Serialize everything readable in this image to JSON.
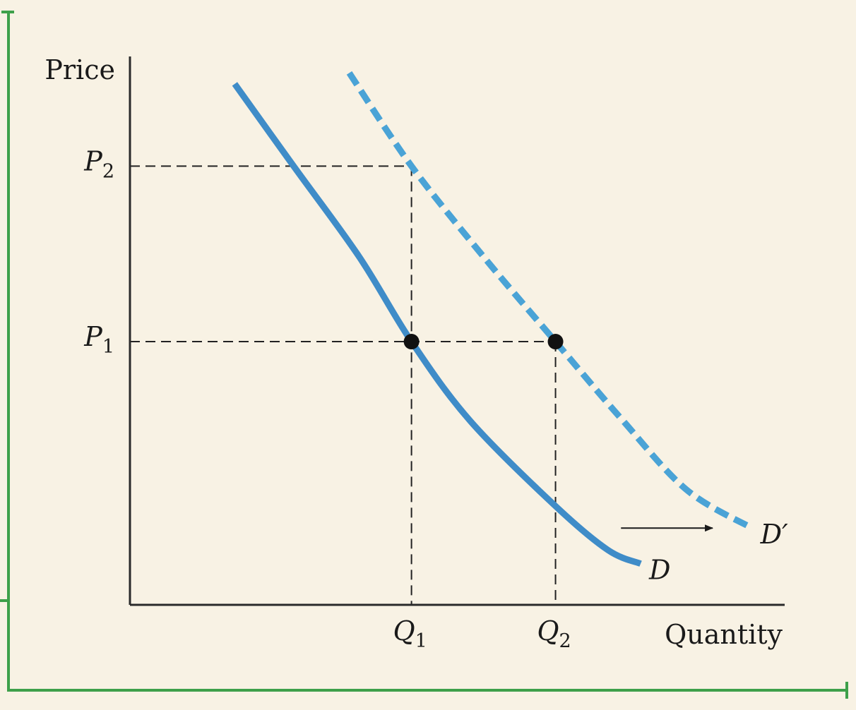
{
  "chart_data": {
    "type": "line",
    "title": "",
    "xlabel": "Quantity",
    "ylabel": "Price",
    "xlim": [
      0,
      100
    ],
    "ylim": [
      0,
      100
    ],
    "grid": false,
    "legend": "none",
    "x_ticks": [
      {
        "label": "Q",
        "sub": "1",
        "value": 43
      },
      {
        "label": "Q",
        "sub": "2",
        "value": 65
      }
    ],
    "y_ticks": [
      {
        "label": "P",
        "sub": "1",
        "value": 48
      },
      {
        "label": "P",
        "sub": "2",
        "value": 80
      }
    ],
    "series": [
      {
        "name": "D",
        "style": "solid",
        "color": "#3f8cc8",
        "points": [
          [
            16,
            95
          ],
          [
            25,
            80
          ],
          [
            35,
            63.5
          ],
          [
            43,
            48
          ],
          [
            52,
            33.5
          ],
          [
            65,
            18
          ],
          [
            73,
            10
          ],
          [
            78,
            7.5
          ]
        ]
      },
      {
        "name": "D′",
        "style": "dashed",
        "color": "#4aa3d6",
        "points": [
          [
            33.5,
            97
          ],
          [
            43,
            80
          ],
          [
            54,
            63.5
          ],
          [
            65,
            48
          ],
          [
            75,
            34
          ],
          [
            85,
            21
          ],
          [
            95,
            14
          ]
        ]
      }
    ],
    "points": [
      {
        "x": 43,
        "y": 48
      },
      {
        "x": 65,
        "y": 48
      }
    ],
    "guides": [
      {
        "from": [
          0,
          80
        ],
        "to": [
          43,
          80
        ]
      },
      {
        "from": [
          43,
          80
        ],
        "to": [
          43,
          0
        ]
      },
      {
        "from": [
          0,
          48
        ],
        "to": [
          65,
          48
        ]
      },
      {
        "from": [
          65,
          48
        ],
        "to": [
          65,
          0
        ]
      }
    ],
    "annotations": [
      {
        "type": "arrow",
        "from": [
          75,
          14
        ],
        "to": [
          89,
          14
        ]
      }
    ]
  },
  "colors": {
    "background": "#f8f2e4",
    "frame": "#3ea04a",
    "axis": "#2a2a2a",
    "points": "#111111"
  }
}
